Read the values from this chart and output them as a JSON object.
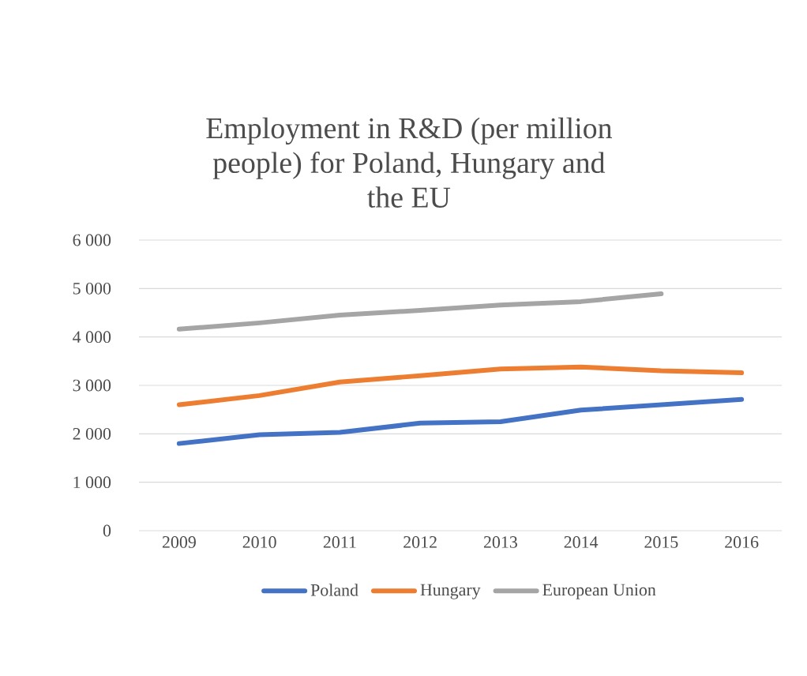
{
  "chart_data": {
    "type": "line",
    "title": "Employment in R&D (per million people) for Poland, Hungary and the EU",
    "categories": [
      "2009",
      "2010",
      "2011",
      "2012",
      "2013",
      "2014",
      "2015",
      "2016"
    ],
    "series": [
      {
        "name": "Poland",
        "color": "#4472c4",
        "values": [
          1800,
          1980,
          2030,
          2220,
          2250,
          2490,
          2600,
          2710
        ]
      },
      {
        "name": "Hungary",
        "color": "#ed7d31",
        "values": [
          2600,
          2790,
          3070,
          3200,
          3340,
          3380,
          3300,
          3260
        ]
      },
      {
        "name": "European Union",
        "color": "#a5a5a5",
        "values": [
          4160,
          4290,
          4450,
          4550,
          4660,
          4730,
          4890,
          null
        ]
      }
    ],
    "ylim": [
      0,
      6000
    ],
    "yticks": [
      {
        "value": 0,
        "label": "0"
      },
      {
        "value": 1000,
        "label": "1 000"
      },
      {
        "value": 2000,
        "label": "2 000"
      },
      {
        "value": 3000,
        "label": "3 000"
      },
      {
        "value": 4000,
        "label": "4 000"
      },
      {
        "value": 5000,
        "label": "5 000"
      },
      {
        "value": 6000,
        "label": "6 000"
      }
    ],
    "grid": "y",
    "legend": "bottom",
    "marker": "none",
    "line_style": "solid"
  }
}
